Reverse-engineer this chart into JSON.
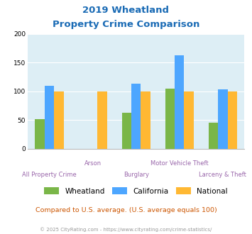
{
  "title_line1": "2019 Wheatland",
  "title_line2": "Property Crime Comparison",
  "categories": [
    "All Property Crime",
    "Arson",
    "Burglary",
    "Motor Vehicle Theft",
    "Larceny & Theft"
  ],
  "series": {
    "Wheatland": [
      52,
      null,
      62,
      105,
      45
    ],
    "California": [
      110,
      null,
      113,
      163,
      103
    ],
    "National": [
      100,
      100,
      100,
      100,
      100
    ]
  },
  "colors": {
    "Wheatland": "#7ab648",
    "California": "#4da6ff",
    "National": "#ffb833"
  },
  "ylim": [
    0,
    200
  ],
  "yticks": [
    0,
    50,
    100,
    150,
    200
  ],
  "background_color": "#ddeef5",
  "subtitle": "Compared to U.S. average. (U.S. average equals 100)",
  "footer": "© 2025 CityRating.com - https://www.cityrating.com/crime-statistics/",
  "title_color": "#1a6bb5",
  "subtitle_color": "#cc5500",
  "footer_color": "#999999",
  "xlabel_color": "#9966aa",
  "bar_width": 0.22
}
